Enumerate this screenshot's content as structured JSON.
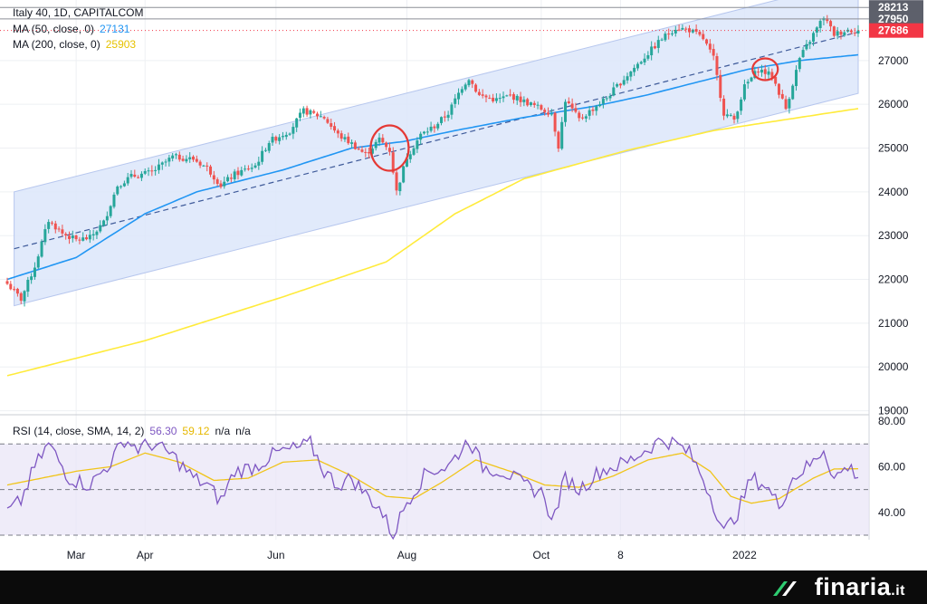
{
  "legend": {
    "title": "Italy 40, 1D, CAPITALCOM",
    "ma50_label": "MA (50, close, 0)",
    "ma50_value": "27131",
    "ma200_label": "MA (200, close, 0)",
    "ma200_value": "25903",
    "rsi_label": "RSI (14, close, SMA, 14, 2)",
    "rsi_value": "56.30",
    "rsi_ma_value": "59.12",
    "rsi_na1": "n/a",
    "rsi_na2": "n/a"
  },
  "colors": {
    "up": "#26a69a",
    "down": "#ef5350",
    "ma50": "#2196f3",
    "ma200": "#ffeb3b",
    "channel_fill": "#dce6fa",
    "rsi_line": "#7e57c2",
    "rsi_ma": "#f0c419",
    "last_price": "#f23645"
  },
  "brand": {
    "name": "finaria",
    "tld": ".it",
    "logo_icon": "finaria-logo-icon"
  },
  "chart_data": [
    {
      "type": "candlestick",
      "title": "Italy 40, 1D, CAPITALCOM",
      "currency": "EUR",
      "x_ticks": [
        "Mar",
        "Apr",
        "Jun",
        "Aug",
        "Oct",
        "8",
        "2022"
      ],
      "y_ticks": [
        19000,
        20000,
        21000,
        22000,
        23000,
        24000,
        25000,
        26000,
        27000
      ],
      "ylim": [
        18950,
        28300
      ],
      "price_labels": [
        {
          "text": "28213",
          "value": 28213,
          "kind": "level"
        },
        {
          "text": "27950",
          "value": 27950,
          "kind": "level"
        },
        {
          "text": "27686",
          "value": 27686,
          "kind": "last"
        }
      ],
      "close_waypoints": [
        [
          0,
          21900
        ],
        [
          4,
          21550
        ],
        [
          8,
          22300
        ],
        [
          12,
          23350
        ],
        [
          16,
          23050
        ],
        [
          20,
          22900
        ],
        [
          24,
          22950
        ],
        [
          28,
          23300
        ],
        [
          32,
          24150
        ],
        [
          36,
          24350
        ],
        [
          42,
          24450
        ],
        [
          48,
          24800
        ],
        [
          54,
          24750
        ],
        [
          58,
          24550
        ],
        [
          62,
          24150
        ],
        [
          66,
          24400
        ],
        [
          72,
          24600
        ],
        [
          76,
          25150
        ],
        [
          82,
          25400
        ],
        [
          86,
          25850
        ],
        [
          92,
          25700
        ],
        [
          96,
          25300
        ],
        [
          100,
          25100
        ],
        [
          104,
          24850
        ],
        [
          108,
          25200
        ],
        [
          111,
          24950
        ],
        [
          113,
          24000
        ],
        [
          116,
          24800
        ],
        [
          120,
          25300
        ],
        [
          124,
          25500
        ],
        [
          128,
          25800
        ],
        [
          132,
          26400
        ],
        [
          134,
          26600
        ],
        [
          137,
          26200
        ],
        [
          142,
          26100
        ],
        [
          146,
          26200
        ],
        [
          152,
          26000
        ],
        [
          158,
          25800
        ],
        [
          160,
          25050
        ],
        [
          162,
          26100
        ],
        [
          166,
          25650
        ],
        [
          170,
          25900
        ],
        [
          174,
          26150
        ],
        [
          178,
          26500
        ],
        [
          184,
          27000
        ],
        [
          190,
          27500
        ],
        [
          194,
          27750
        ],
        [
          198,
          27700
        ],
        [
          202,
          27500
        ],
        [
          205,
          27050
        ],
        [
          208,
          25800
        ],
        [
          211,
          25650
        ],
        [
          214,
          26400
        ],
        [
          218,
          26800
        ],
        [
          222,
          26650
        ],
        [
          226,
          25900
        ],
        [
          230,
          27050
        ],
        [
          234,
          27600
        ],
        [
          237,
          28000
        ],
        [
          240,
          27600
        ],
        [
          244,
          27700
        ],
        [
          247,
          27686
        ]
      ],
      "series": [
        {
          "name": "MA (50, close, 0)",
          "last": 27131,
          "waypoints": [
            [
              0,
              22000
            ],
            [
              20,
              22500
            ],
            [
              40,
              23500
            ],
            [
              55,
              24000
            ],
            [
              80,
              24500
            ],
            [
              100,
              25000
            ],
            [
              115,
              25150
            ],
            [
              130,
              25400
            ],
            [
              150,
              25700
            ],
            [
              170,
              25950
            ],
            [
              185,
              26200
            ],
            [
              205,
              26600
            ],
            [
              215,
              26800
            ],
            [
              230,
              27000
            ],
            [
              247,
              27131
            ]
          ]
        },
        {
          "name": "MA (200, close, 0)",
          "last": 25903,
          "waypoints": [
            [
              0,
              19800
            ],
            [
              40,
              20600
            ],
            [
              80,
              21600
            ],
            [
              110,
              22400
            ],
            [
              130,
              23500
            ],
            [
              150,
              24300
            ],
            [
              180,
              24950
            ],
            [
              205,
              25400
            ],
            [
              230,
              25700
            ],
            [
              247,
              25903
            ]
          ]
        }
      ],
      "regression_channel": {
        "center": [
          [
            2,
            22700
          ],
          [
            247,
            27650
          ]
        ],
        "upper": [
          [
            2,
            24000
          ],
          [
            247,
            28850
          ]
        ],
        "lower": [
          [
            2,
            21400
          ],
          [
            247,
            26250
          ]
        ]
      },
      "annotations": [
        {
          "shape": "circle",
          "at": [
            111,
            25000
          ]
        },
        {
          "shape": "circle",
          "at": [
            220,
            26800
          ]
        }
      ]
    },
    {
      "type": "line",
      "title": "RSI (14, close, SMA, 14, 2)",
      "y_ticks": [
        40,
        60,
        80
      ],
      "ylim": [
        28,
        82
      ],
      "bands": [
        30,
        50,
        70
      ],
      "series": [
        {
          "name": "RSI",
          "last": 56.3,
          "waypoints": [
            [
              0,
              40
            ],
            [
              4,
              45
            ],
            [
              8,
              60
            ],
            [
              12,
              70
            ],
            [
              18,
              55
            ],
            [
              24,
              52
            ],
            [
              30,
              62
            ],
            [
              34,
              72
            ],
            [
              38,
              68
            ],
            [
              42,
              70
            ],
            [
              48,
              65
            ],
            [
              54,
              55
            ],
            [
              58,
              52
            ],
            [
              62,
              45
            ],
            [
              66,
              58
            ],
            [
              72,
              60
            ],
            [
              78,
              66
            ],
            [
              84,
              68
            ],
            [
              88,
              70
            ],
            [
              92,
              58
            ],
            [
              96,
              52
            ],
            [
              100,
              55
            ],
            [
              104,
              48
            ],
            [
              108,
              42
            ],
            [
              112,
              30
            ],
            [
              116,
              45
            ],
            [
              122,
              58
            ],
            [
              128,
              60
            ],
            [
              132,
              68
            ],
            [
              134,
              72
            ],
            [
              138,
              60
            ],
            [
              144,
              58
            ],
            [
              150,
              52
            ],
            [
              156,
              48
            ],
            [
              158,
              35
            ],
            [
              162,
              55
            ],
            [
              166,
              50
            ],
            [
              172,
              58
            ],
            [
              180,
              62
            ],
            [
              186,
              68
            ],
            [
              190,
              72
            ],
            [
              194,
              70
            ],
            [
              198,
              66
            ],
            [
              202,
              55
            ],
            [
              206,
              40
            ],
            [
              208,
              31
            ],
            [
              212,
              40
            ],
            [
              216,
              55
            ],
            [
              220,
              52
            ],
            [
              224,
              43
            ],
            [
              228,
              55
            ],
            [
              234,
              62
            ],
            [
              237,
              68
            ],
            [
              240,
              55
            ],
            [
              244,
              60
            ],
            [
              247,
              56.3
            ]
          ]
        },
        {
          "name": "RSI-based MA",
          "last": 59.12,
          "waypoints": [
            [
              0,
              52
            ],
            [
              10,
              55
            ],
            [
              20,
              58
            ],
            [
              30,
              60
            ],
            [
              40,
              66
            ],
            [
              50,
              62
            ],
            [
              60,
              54
            ],
            [
              70,
              55
            ],
            [
              80,
              62
            ],
            [
              90,
              63
            ],
            [
              100,
              56
            ],
            [
              110,
              47
            ],
            [
              118,
              46
            ],
            [
              126,
              53
            ],
            [
              136,
              63
            ],
            [
              146,
              58
            ],
            [
              156,
              52
            ],
            [
              166,
              51
            ],
            [
              176,
              56
            ],
            [
              186,
              63
            ],
            [
              196,
              66
            ],
            [
              204,
              58
            ],
            [
              210,
              47
            ],
            [
              216,
              44
            ],
            [
              224,
              46
            ],
            [
              234,
              55
            ],
            [
              240,
              59
            ],
            [
              247,
              59.12
            ]
          ]
        }
      ]
    }
  ]
}
